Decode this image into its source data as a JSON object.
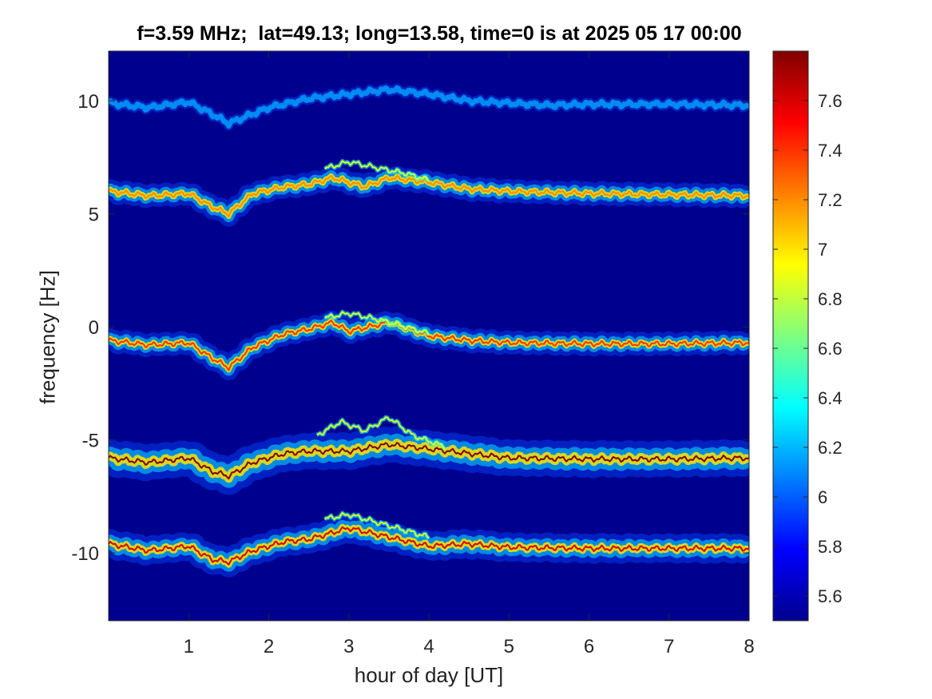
{
  "chart_data": {
    "type": "heatmap",
    "title": "f=3.59 MHz;  lat=49.13; long=13.58, time=0 is at 2025 05 17 00:00",
    "xlabel": "hour of day [UT]",
    "ylabel": "frequency [Hz]",
    "xlim": [
      0,
      8
    ],
    "ylim": [
      -13,
      12.2
    ],
    "xticks": [
      1,
      2,
      3,
      4,
      5,
      6,
      7,
      8
    ],
    "yticks": [
      -10,
      -5,
      0,
      5,
      10
    ],
    "grid": false,
    "colorbar": {
      "colormap": "jet",
      "clim": [
        5.5,
        7.8
      ],
      "ticks": [
        "5.6",
        "5.8",
        "6",
        "6.2",
        "6.4",
        "6.6",
        "6.8",
        "7",
        "7.2",
        "7.4",
        "7.6"
      ]
    },
    "background_value": 5.55,
    "traces": [
      {
        "base_hz": 9.9,
        "peak_level": 6.1,
        "spread_hz": 0.25,
        "x": [
          0,
          0.5,
          1.0,
          1.3,
          1.5,
          2.0,
          2.5,
          3.0,
          3.5,
          4.0,
          4.5,
          5.0,
          5.5,
          6.0,
          7.0,
          8.0
        ],
        "y": [
          9.9,
          9.7,
          9.95,
          9.4,
          9.0,
          9.7,
          10.1,
          10.3,
          10.5,
          10.3,
          10.0,
          9.9,
          9.8,
          9.85,
          9.85,
          9.8
        ]
      },
      {
        "base_hz": 5.9,
        "peak_level": 7.2,
        "spread_hz": 0.55,
        "x": [
          0,
          0.5,
          1.0,
          1.3,
          1.5,
          1.8,
          2.2,
          2.5,
          2.8,
          3.2,
          3.5,
          4.0,
          4.5,
          5.0,
          6.0,
          7.0,
          8.0
        ],
        "y": [
          6.0,
          5.8,
          5.9,
          5.3,
          5.0,
          5.9,
          6.2,
          6.3,
          6.6,
          6.2,
          6.6,
          6.4,
          6.1,
          6.0,
          5.9,
          5.85,
          5.8
        ],
        "branch": {
          "x": [
            2.7,
            3.0,
            3.4,
            3.7,
            4.0
          ],
          "y": [
            7.0,
            7.3,
            7.0,
            6.8,
            6.5
          ]
        }
      },
      {
        "base_hz": -0.7,
        "peak_level": 7.4,
        "spread_hz": 0.55,
        "x": [
          0,
          0.5,
          1.0,
          1.3,
          1.5,
          1.8,
          2.2,
          2.5,
          2.8,
          3.0,
          3.5,
          4.0,
          4.5,
          5.0,
          6.0,
          7.0,
          8.0
        ],
        "y": [
          -0.6,
          -0.8,
          -0.7,
          -1.4,
          -1.8,
          -0.9,
          -0.3,
          -0.1,
          0.2,
          -0.2,
          0.2,
          -0.4,
          -0.6,
          -0.7,
          -0.75,
          -0.75,
          -0.7
        ],
        "branch": {
          "x": [
            2.7,
            3.0,
            3.4,
            3.8,
            4.0
          ],
          "y": [
            0.4,
            0.6,
            0.3,
            -0.1,
            -0.3
          ]
        }
      },
      {
        "base_hz": -5.8,
        "peak_level": 7.8,
        "spread_hz": 0.9,
        "x": [
          0,
          0.5,
          1.0,
          1.3,
          1.5,
          1.8,
          2.2,
          2.5,
          3.0,
          3.5,
          4.0,
          4.5,
          5.0,
          6.0,
          7.0,
          8.0
        ],
        "y": [
          -5.8,
          -6.0,
          -5.8,
          -6.4,
          -6.6,
          -6.0,
          -5.6,
          -5.5,
          -5.5,
          -5.2,
          -5.4,
          -5.6,
          -5.8,
          -5.85,
          -5.85,
          -5.8
        ],
        "branch": {
          "x": [
            2.6,
            2.9,
            3.2,
            3.5,
            3.8,
            4.2
          ],
          "y": [
            -4.8,
            -4.2,
            -4.6,
            -4.0,
            -4.8,
            -5.3
          ]
        }
      },
      {
        "base_hz": -9.8,
        "peak_level": 7.6,
        "spread_hz": 0.7,
        "x": [
          0,
          0.5,
          1.0,
          1.3,
          1.5,
          1.8,
          2.2,
          2.5,
          3.0,
          3.5,
          4.0,
          4.5,
          5.0,
          6.0,
          7.0,
          8.0
        ],
        "y": [
          -9.6,
          -9.9,
          -9.7,
          -10.3,
          -10.4,
          -9.9,
          -9.5,
          -9.4,
          -8.9,
          -9.3,
          -9.7,
          -9.6,
          -9.75,
          -9.8,
          -9.8,
          -9.8
        ],
        "branch": {
          "x": [
            2.7,
            3.0,
            3.5,
            4.0
          ],
          "y": [
            -8.5,
            -8.3,
            -8.8,
            -9.3
          ]
        }
      }
    ]
  }
}
